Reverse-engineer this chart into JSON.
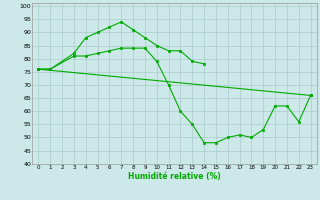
{
  "xlabel": "Humidité relative (%)",
  "background_color": "#cce8e8",
  "grid_color": "#aacccc",
  "line_color": "#00aa00",
  "xlim": [
    -0.5,
    23.5
  ],
  "ylim": [
    40,
    101
  ],
  "yticks": [
    40,
    45,
    50,
    55,
    60,
    65,
    70,
    75,
    80,
    85,
    90,
    95,
    100
  ],
  "xticks": [
    0,
    1,
    2,
    3,
    4,
    5,
    6,
    7,
    8,
    9,
    10,
    11,
    12,
    13,
    14,
    15,
    16,
    17,
    18,
    19,
    20,
    21,
    22,
    23
  ],
  "line1_x": [
    0,
    1,
    3,
    4,
    5,
    6,
    7,
    8,
    9,
    10,
    11,
    12,
    13,
    14
  ],
  "line1_y": [
    76,
    76,
    82,
    88,
    90,
    92,
    94,
    91,
    88,
    85,
    83,
    83,
    79,
    78
  ],
  "line2_x": [
    0,
    1,
    3,
    4,
    5,
    6,
    7,
    8,
    9,
    10,
    11,
    12,
    13,
    14,
    15,
    16,
    17,
    18,
    19,
    20,
    21,
    22,
    23
  ],
  "line2_y": [
    76,
    76,
    81,
    81,
    82,
    83,
    84,
    84,
    84,
    79,
    70,
    60,
    55,
    48,
    48,
    50,
    51,
    50,
    53,
    62,
    62,
    56,
    66
  ],
  "line3_x": [
    0,
    23
  ],
  "line3_y": [
    76,
    66
  ]
}
